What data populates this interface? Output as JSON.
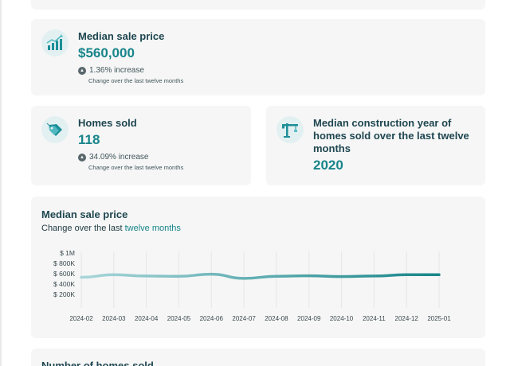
{
  "median_price": {
    "title": "Median sale price",
    "value": "$560,000",
    "change": "1.36% increase",
    "change_sub": "Change over the last twelve months",
    "icon": "chart-up-icon"
  },
  "homes_sold": {
    "title": "Homes sold",
    "value": "118",
    "change": "34.09% increase",
    "change_sub": "Change over the last twelve months",
    "icon": "price-tag-icon"
  },
  "construction_year": {
    "title_lines": [
      "Median construction year of",
      "homes sold over the last twelve",
      "months"
    ],
    "value": "2020",
    "icon": "crane-icon"
  },
  "chart_section": {
    "title": "Median sale price",
    "subtitle_prefix": "Change over the last ",
    "subtitle_highlight": "twelve months"
  },
  "bottom_section": {
    "title": "Number of homes sold"
  },
  "colors": {
    "accent": "#17858a",
    "line_light": "#a9d6d9",
    "card_bg": "#f6f6f6",
    "title": "#1e4650"
  },
  "chart_data": {
    "type": "line",
    "title": "Median sale price",
    "subtitle": "Change over the last twelve months",
    "x": [
      "2024-02",
      "2024-03",
      "2024-04",
      "2024-05",
      "2024-06",
      "2024-07",
      "2024-08",
      "2024-09",
      "2024-10",
      "2024-11",
      "2024-12",
      "2025-01"
    ],
    "y_ticks": [
      "$ 1M",
      "$ 800K",
      "$ 600K",
      "$ 400K",
      "$ 200K"
    ],
    "ylim": [
      200000,
      1000000
    ],
    "series": [
      {
        "values": [
          530000,
          580000,
          555000,
          550000,
          590000,
          510000,
          550000,
          560000,
          545000,
          555000,
          580000,
          580000
        ]
      }
    ],
    "grid": "vertical"
  }
}
